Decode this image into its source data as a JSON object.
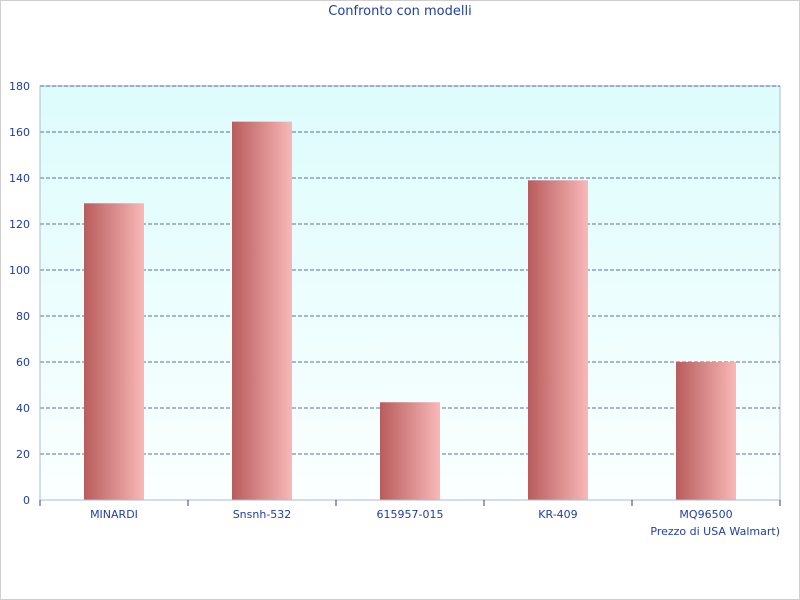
{
  "chart_data": {
    "type": "bar",
    "title": "Confronto con modelli",
    "categories": [
      "MINARDI",
      "Snsnh-532",
      "615957-015",
      "KR-409",
      "MQ96500"
    ],
    "values": [
      129,
      164.5,
      42.5,
      139,
      60
    ],
    "xlabel": "Prezzo di USA Walmart)",
    "ylabel": "",
    "ylim": [
      0,
      180
    ],
    "yticks": [
      0,
      20,
      40,
      60,
      80,
      100,
      120,
      140,
      160,
      180
    ],
    "grid": true,
    "legend": "none",
    "colors": {
      "bar_dark": "#b85c5c",
      "bar_light": "#f9b8b8",
      "plot_top": "#ddfcfc",
      "plot_bottom": "#fbffff",
      "grid": "#2b3f8f",
      "text": "#1f3f9f",
      "axis": "#aabbd6"
    }
  }
}
